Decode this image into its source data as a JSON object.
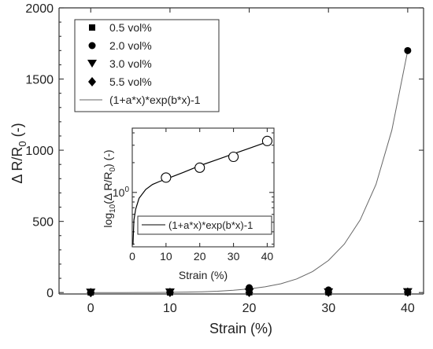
{
  "chart_data": [
    {
      "type": "scatter",
      "xlabel": "Strain (%)",
      "ylabel_main": "Δ R/R",
      "ylabel_sub": "0",
      "ylabel_unit": " (-)",
      "xlim": [
        -4,
        42
      ],
      "ylim": [
        -10,
        2000
      ],
      "xticks": [
        0,
        10,
        20,
        30,
        40
      ],
      "yticks": [
        0,
        500,
        1000,
        1500,
        2000
      ],
      "grid": false,
      "legend_position": "top-left",
      "series": [
        {
          "name": "0.5 vol%",
          "marker": "square",
          "x": [
            0,
            10,
            20,
            30,
            40
          ],
          "y": [
            1,
            1,
            2,
            2,
            2
          ]
        },
        {
          "name": "2.0 vol%",
          "marker": "circle",
          "x": [
            0,
            10,
            20,
            30,
            40
          ],
          "y": [
            1,
            4,
            34,
            18,
            1700
          ]
        },
        {
          "name": "3.0 vol%",
          "marker": "triangle-down",
          "x": [
            0,
            10,
            20,
            30,
            40
          ],
          "y": [
            0,
            1,
            2,
            2,
            3
          ]
        },
        {
          "name": "5.5 vol%",
          "marker": "diamond",
          "x": [
            0,
            10,
            20,
            30,
            40
          ],
          "y": [
            0,
            1,
            1,
            2,
            3
          ]
        }
      ],
      "fit_label": "(1+a*x)*exp(b*x)-1",
      "fit_curve": {
        "x": [
          0,
          2,
          4,
          6,
          8,
          10,
          12,
          14,
          16,
          18,
          20,
          22,
          24,
          26,
          28,
          30,
          32,
          34,
          36,
          38,
          40
        ],
        "y": [
          0,
          0.03,
          0.1,
          0.3,
          0.7,
          1.5,
          3,
          5.5,
          9.5,
          16,
          26,
          40,
          62,
          96,
          148,
          225,
          340,
          510,
          760,
          1140,
          1700
        ]
      }
    },
    {
      "type": "scatter",
      "xlabel": "Strain (%)",
      "ylabel_prefix": "log",
      "ylabel_prefix_sub": "10",
      "ylabel_main": "(Δ R/R",
      "ylabel_sub": "0",
      "ylabel_unit": ") (-)",
      "xlim": [
        0,
        42
      ],
      "ylog_range": [
        -0.55,
        0.65
      ],
      "xticks": [
        0,
        10,
        20,
        30,
        40
      ],
      "ytick_base": "10",
      "ytick_exp": "0",
      "ytick_value": 1,
      "legend_position": "bottom-right",
      "points": {
        "x": [
          10,
          20,
          30,
          40
        ],
        "log10_y": [
          0.15,
          0.25,
          0.36,
          0.52
        ]
      },
      "fit_label": "(1+a*x)*exp(b*x)-1",
      "fit_curve": {
        "x": [
          0.2,
          0.5,
          1,
          2,
          4,
          6,
          8,
          10,
          15,
          20,
          25,
          30,
          35,
          40
        ],
        "log10_y": [
          -0.53,
          -0.28,
          -0.17,
          -0.06,
          0.03,
          0.08,
          0.11,
          0.135,
          0.2,
          0.27,
          0.33,
          0.39,
          0.45,
          0.51
        ]
      }
    }
  ]
}
